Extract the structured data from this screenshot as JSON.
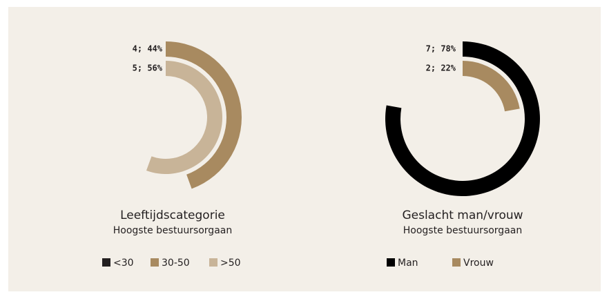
{
  "chart_data": [
    {
      "type": "radial_bar",
      "title": "Leeftijdscategorie",
      "subtitle": "Hoogste bestuursorgaan",
      "categories": [
        "<30",
        "30-50",
        ">50"
      ],
      "values": [
        0,
        4,
        5
      ],
      "value_labels": [
        null,
        "4; 44%",
        "5; 56%"
      ],
      "colors": [
        "#231f20",
        "#a88a60",
        "#c8b498"
      ]
    },
    {
      "type": "radial_bar",
      "title": "Geslacht man/vrouw",
      "subtitle": "Hoogste bestuursorgaan",
      "categories": [
        "Man",
        "Vrouw"
      ],
      "values": [
        7,
        2
      ],
      "value_labels": [
        "7; 78%",
        "2; 22%"
      ],
      "colors": [
        "#000000",
        "#a88a60"
      ]
    }
  ]
}
